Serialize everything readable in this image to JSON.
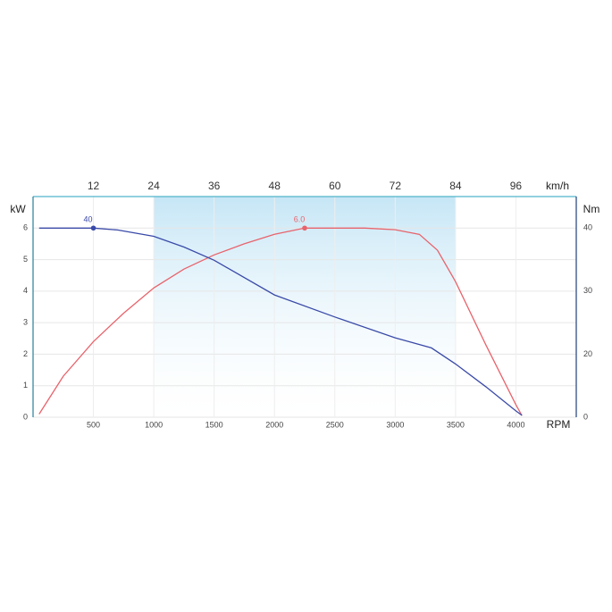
{
  "chart_data": {
    "type": "line",
    "x_label": "RPM",
    "x2_label": "km/h",
    "y_label": "kW",
    "y2_label": "Nm",
    "xlim": [
      0,
      4500
    ],
    "xticks": [
      500,
      1000,
      1500,
      2000,
      2500,
      3000,
      3500,
      4000
    ],
    "x2lim": [
      0,
      108
    ],
    "x2ticks": [
      12,
      24,
      36,
      48,
      60,
      72,
      84,
      96
    ],
    "ylim": [
      0,
      7
    ],
    "yticks": [
      0,
      1,
      2,
      3,
      4,
      5,
      6
    ],
    "y2lim": [
      0,
      45
    ],
    "y2ticks": [
      0,
      20,
      30,
      40
    ],
    "grid": true,
    "shaded_range": [
      1000,
      3500
    ],
    "series": [
      {
        "name": "kW",
        "color": "#e8636b",
        "x": [
          50,
          250,
          500,
          750,
          1000,
          1250,
          1500,
          1750,
          2000,
          2250,
          2500,
          2750,
          3000,
          3200,
          3350,
          3500,
          3750,
          4000,
          4050
        ],
        "values": [
          0.1,
          1.3,
          2.4,
          3.3,
          4.1,
          4.7,
          5.15,
          5.5,
          5.8,
          6,
          6,
          6,
          5.95,
          5.8,
          5.3,
          4.3,
          2.3,
          0.4,
          0.05
        ],
        "marker": {
          "x": 2250,
          "value": 6,
          "label": "6.0"
        }
      },
      {
        "name": "Nm",
        "color": "#3a4aa8",
        "axis": "y2",
        "x": [
          50,
          500,
          700,
          1000,
          1250,
          1500,
          2000,
          2500,
          3000,
          3300,
          3500,
          3750,
          4000,
          4050
        ],
        "values": [
          40,
          40,
          39.7,
          38.7,
          37,
          34.9,
          29.4,
          25.9,
          22.6,
          21,
          16.9,
          9.7,
          2,
          0.6
        ],
        "marker": {
          "x": 500,
          "value": 40
        }
      }
    ]
  }
}
